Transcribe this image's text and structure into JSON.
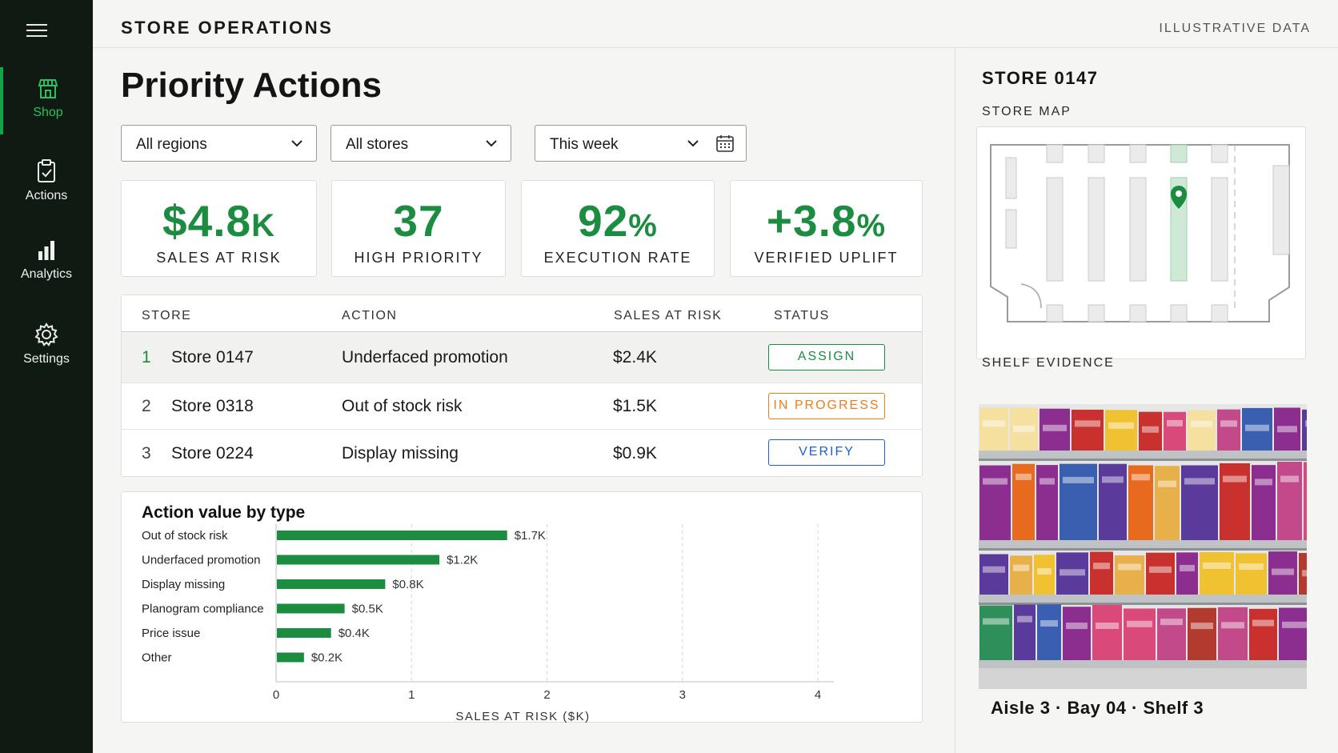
{
  "app": {
    "title": "STORE OPERATIONS",
    "note": "ILLUSTRATIVE DATA"
  },
  "sidebar": {
    "items": [
      {
        "label": "Shop",
        "icon": "store-icon",
        "active": true
      },
      {
        "label": "Actions",
        "icon": "clipboard-check-icon",
        "active": false
      },
      {
        "label": "Analytics",
        "icon": "bar-chart-icon",
        "active": false
      },
      {
        "label": "Settings",
        "icon": "gear-icon",
        "active": false
      }
    ]
  },
  "page": {
    "title": "Priority Actions"
  },
  "filters": {
    "region": "All regions",
    "store": "All stores",
    "period": "This week"
  },
  "kpis": [
    {
      "value": "$4.8",
      "suffix": "K",
      "label": "SALES AT RISK"
    },
    {
      "value": "37",
      "suffix": "",
      "label": "HIGH PRIORITY"
    },
    {
      "value": "92",
      "suffix": "%",
      "label": "EXECUTION RATE"
    },
    {
      "value": "+3.8",
      "suffix": "%",
      "label": "VERIFIED UPLIFT"
    }
  ],
  "table": {
    "headers": {
      "store": "STORE",
      "action": "ACTION",
      "sales": "SALES AT RISK",
      "status": "STATUS"
    },
    "rows": [
      {
        "index": "1",
        "store": "Store 0147",
        "action": "Underfaced promotion",
        "sales": "$2.4K",
        "status": "ASSIGN"
      },
      {
        "index": "2",
        "store": "Store 0318",
        "action": "Out of stock risk",
        "sales": "$1.5K",
        "status": "IN PROGRESS"
      },
      {
        "index": "3",
        "store": "Store 0224",
        "action": "Display missing",
        "sales": "$0.9K",
        "status": "VERIFY"
      }
    ]
  },
  "colors": {
    "accent": "#1b8c40",
    "assign": "#1b8c40",
    "in_progress": "#ef7d1a",
    "verify": "#1f5fd6",
    "sidebar": "#0e1a12"
  },
  "chart_title": "Action value by type",
  "chart_data": {
    "type": "bar",
    "orientation": "horizontal",
    "categories": [
      "Out of stock risk",
      "Underfaced promotion",
      "Display missing",
      "Planogram compliance",
      "Price issue",
      "Other"
    ],
    "values": [
      1.7,
      1.2,
      0.8,
      0.5,
      0.4,
      0.2
    ],
    "value_labels": [
      "$1.7K",
      "$1.2K",
      "$0.8K",
      "$0.5K",
      "$0.4K",
      "$0.2K"
    ],
    "xticks": [
      "0",
      "1",
      "2",
      "3",
      "4"
    ],
    "xlabel": "SALES AT RISK ($K)",
    "xlim": [
      0,
      4
    ],
    "grid": true,
    "color": "#1b8c40"
  },
  "right_panel": {
    "store": "STORE 0147",
    "map_label": "STORE MAP",
    "evidence_label": "SHELF EVIDENCE",
    "location": "Aisle 3 · Bay 04 · Shelf 3"
  }
}
